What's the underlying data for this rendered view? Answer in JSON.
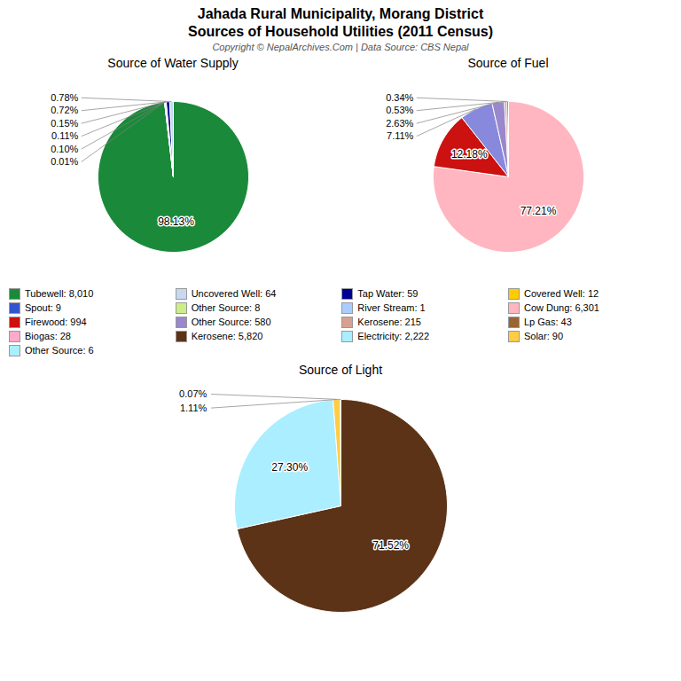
{
  "title": "Jahada Rural Municipality, Morang District",
  "subtitle": "Sources of Household Utilities (2011 Census)",
  "caption": "Copyright © NepalArchives.Com | Data Source: CBS Nepal",
  "legend_columns": [
    [
      {
        "name": "Tubewell: 8,010",
        "color": "#1a8a3a"
      },
      {
        "name": "Spout: 9",
        "color": "#3355cc"
      },
      {
        "name": "Firewood: 994",
        "color": "#cc1111"
      },
      {
        "name": "Biogas: 28",
        "color": "#ffaacc"
      },
      {
        "name": "Other Source: 6",
        "color": "#aaeeff"
      }
    ],
    [
      {
        "name": "Uncovered Well: 64",
        "color": "#c8d8f0"
      },
      {
        "name": "Other Source: 8",
        "color": "#ccee88"
      },
      {
        "name": "Other Source: 580",
        "color": "#9988cc"
      },
      {
        "name": "Kerosene: 5,820",
        "color": "#5c3317"
      }
    ],
    [
      {
        "name": "Tap Water: 59",
        "color": "#000090"
      },
      {
        "name": "River Stream: 1",
        "color": "#aaccff"
      },
      {
        "name": "Kerosene: 215",
        "color": "#d8a090"
      },
      {
        "name": "Electricity: 2,222",
        "color": "#aaeeff"
      }
    ],
    [
      {
        "name": "Covered Well: 12",
        "color": "#ffcc00"
      },
      {
        "name": "Cow Dung: 6,301",
        "color": "#ffb6c1"
      },
      {
        "name": "Lp Gas: 43",
        "color": "#996633"
      },
      {
        "name": "Solar: 90",
        "color": "#ffcc44"
      }
    ]
  ],
  "chart_data": [
    {
      "type": "pie",
      "title": "Source of Water Supply",
      "values": [
        98.13,
        0.01,
        0.1,
        0.11,
        0.15,
        0.72,
        0.78
      ],
      "value_labels": [
        "98.13%",
        "0.01%",
        "0.10%",
        "0.11%",
        "0.15%",
        "0.72%",
        "0.78%"
      ],
      "colors": [
        "#1a8a3a",
        "#aaccff",
        "#ccee88",
        "#3355cc",
        "#ffcc00",
        "#000090",
        "#c8d8f0"
      ],
      "data_labels": true
    },
    {
      "type": "pie",
      "title": "Source of Fuel",
      "values": [
        77.21,
        12.18,
        7.11,
        2.63,
        0.53,
        0.34
      ],
      "value_labels": [
        "77.21%",
        "12.18%",
        "7.11%",
        "2.63%",
        "0.53%",
        "0.34%"
      ],
      "colors": [
        "#ffb6c1",
        "#cc1111",
        "#8888dd",
        "#9988cc",
        "#d8a090",
        "#996633"
      ],
      "data_labels": true
    },
    {
      "type": "pie",
      "title": "Source of Light",
      "values": [
        71.52,
        27.3,
        1.11,
        0.07
      ],
      "value_labels": [
        "71.52%",
        "27.30%",
        "1.11%",
        "0.07%"
      ],
      "colors": [
        "#5c3317",
        "#aaeeff",
        "#ffcc44",
        "#ff9900"
      ],
      "data_labels": true
    }
  ]
}
